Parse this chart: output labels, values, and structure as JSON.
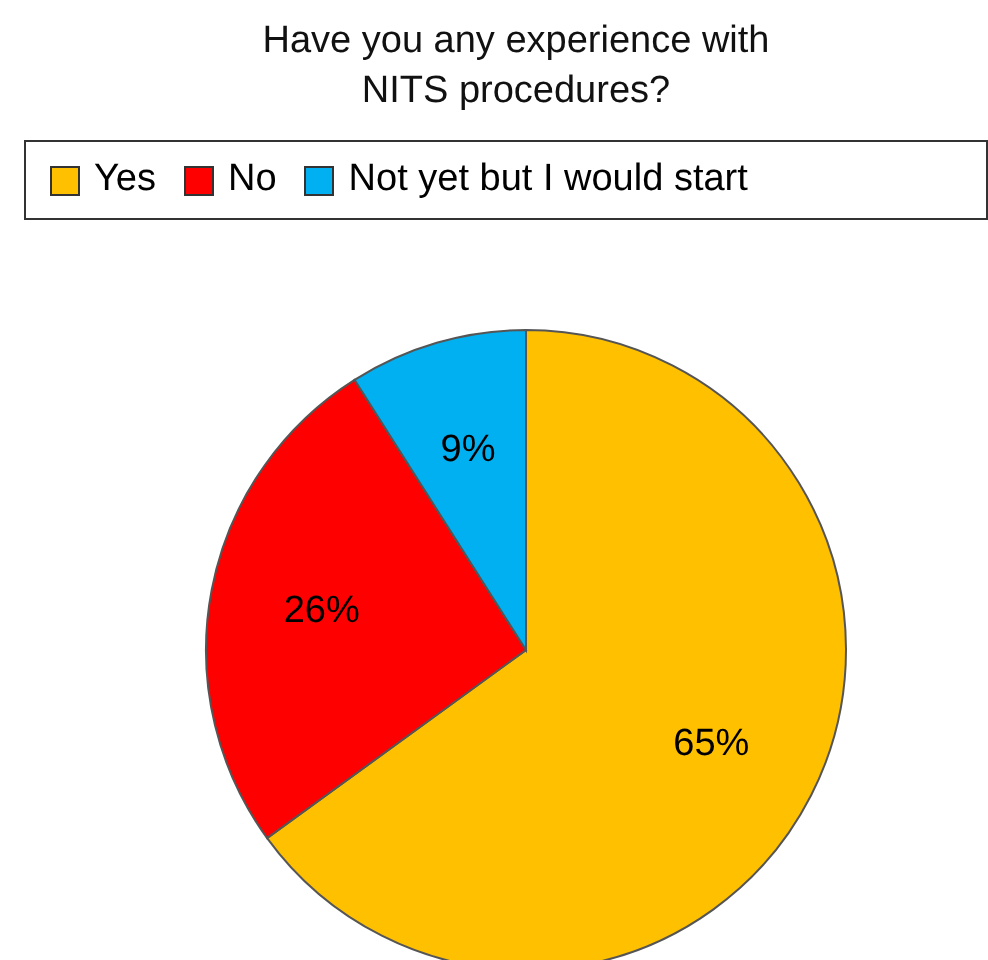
{
  "chart_data": {
    "type": "pie",
    "title": "Have you any experience with NITS procedures?",
    "categories": [
      "Yes",
      "No",
      "Not yet but I would start"
    ],
    "values": [
      65,
      26,
      9
    ],
    "colors": [
      "#ffc000",
      "#ff0000",
      "#00b0f0"
    ],
    "value_labels": [
      "65%",
      "26%",
      "9%"
    ],
    "legend": "top"
  }
}
